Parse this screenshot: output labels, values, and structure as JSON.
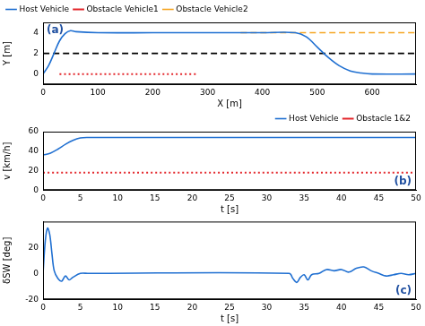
{
  "chart_data": [
    {
      "type": "line",
      "annotation": "(a)",
      "x_label": "X [m]",
      "y_label": "Y [m]",
      "xlim": [
        0,
        680
      ],
      "xticks": [
        0,
        100,
        200,
        300,
        400,
        500,
        600
      ],
      "ylim": [
        -1,
        5
      ],
      "yticks": [
        0,
        2,
        4
      ],
      "grid": false,
      "legend": "top-left",
      "series": [
        {
          "name": "Host Vehicle",
          "color": "#1f6fd1",
          "line_style": "solid",
          "x": [
            0,
            10,
            20,
            30,
            40,
            50,
            60,
            100,
            200,
            300,
            400,
            460,
            480,
            500,
            520,
            540,
            560,
            580,
            600,
            680
          ],
          "values": [
            0,
            0.8,
            2,
            3.2,
            3.9,
            4.2,
            4.1,
            4,
            4,
            4,
            4,
            4,
            3.6,
            2.6,
            1.6,
            0.8,
            0.3,
            0.1,
            0,
            0
          ]
        },
        {
          "name": "Obstacle Vehicle1",
          "color": "#e3262b",
          "line_style": "dotted",
          "x": [
            30,
            280
          ],
          "values": [
            0,
            0
          ]
        },
        {
          "name": "Obstacle Vehicle2",
          "color": "#f5a623",
          "line_style": "dashed",
          "x": [
            360,
            680
          ],
          "values": [
            4,
            4
          ]
        },
        {
          "color": "#000000",
          "line_style": "dashed",
          "x": [
            0,
            680
          ],
          "values": [
            2,
            2
          ]
        }
      ]
    },
    {
      "type": "line",
      "annotation": "(b)",
      "x_label": "t [s]",
      "y_label": "v [km/h]",
      "xlim": [
        0,
        50
      ],
      "xticks": [
        0,
        5,
        10,
        15,
        20,
        25,
        30,
        35,
        40,
        45,
        50
      ],
      "ylim": [
        0,
        60
      ],
      "yticks": [
        0,
        20,
        40,
        60
      ],
      "grid": false,
      "legend": "top-right",
      "series": [
        {
          "name": "Host Vehicle",
          "color": "#1f6fd1",
          "line_style": "solid",
          "x": [
            0,
            1,
            2,
            3,
            4,
            5,
            6,
            10,
            50
          ],
          "values": [
            36,
            38,
            42,
            47,
            51,
            53.5,
            54,
            54,
            54
          ]
        },
        {
          "name": "Obstacle 1&2",
          "color": "#e3262b",
          "line_style": "dotted",
          "x": [
            0,
            50
          ],
          "values": [
            18,
            18
          ]
        }
      ]
    },
    {
      "type": "line",
      "annotation": "(c)",
      "x_label": "t [s]",
      "y_label": "δSW [deg]",
      "xlim": [
        0,
        50
      ],
      "xticks": [
        0,
        5,
        10,
        15,
        20,
        25,
        30,
        35,
        40,
        45,
        50
      ],
      "ylim": [
        -20,
        40
      ],
      "yticks": [
        -20,
        0,
        20
      ],
      "grid": false,
      "series": [
        {
          "color": "#1f6fd1",
          "line_style": "solid",
          "x": [
            0,
            0.3,
            0.6,
            0.9,
            1.2,
            1.5,
            2,
            2.5,
            3,
            3.5,
            4,
            5,
            6,
            33,
            33.5,
            34,
            34.5,
            35,
            35.5,
            36,
            37,
            38,
            39,
            40,
            41,
            42,
            43,
            44,
            45,
            46,
            47,
            48,
            49,
            50
          ],
          "values": [
            0,
            25,
            35,
            30,
            15,
            2,
            -4,
            -6,
            -2,
            -5,
            -3,
            0,
            0,
            0,
            -4,
            -7,
            -3,
            -1,
            -5,
            -1,
            0,
            3,
            2,
            3,
            1,
            4,
            5,
            2,
            0,
            -2,
            -1,
            0,
            -1,
            0
          ]
        }
      ]
    }
  ]
}
